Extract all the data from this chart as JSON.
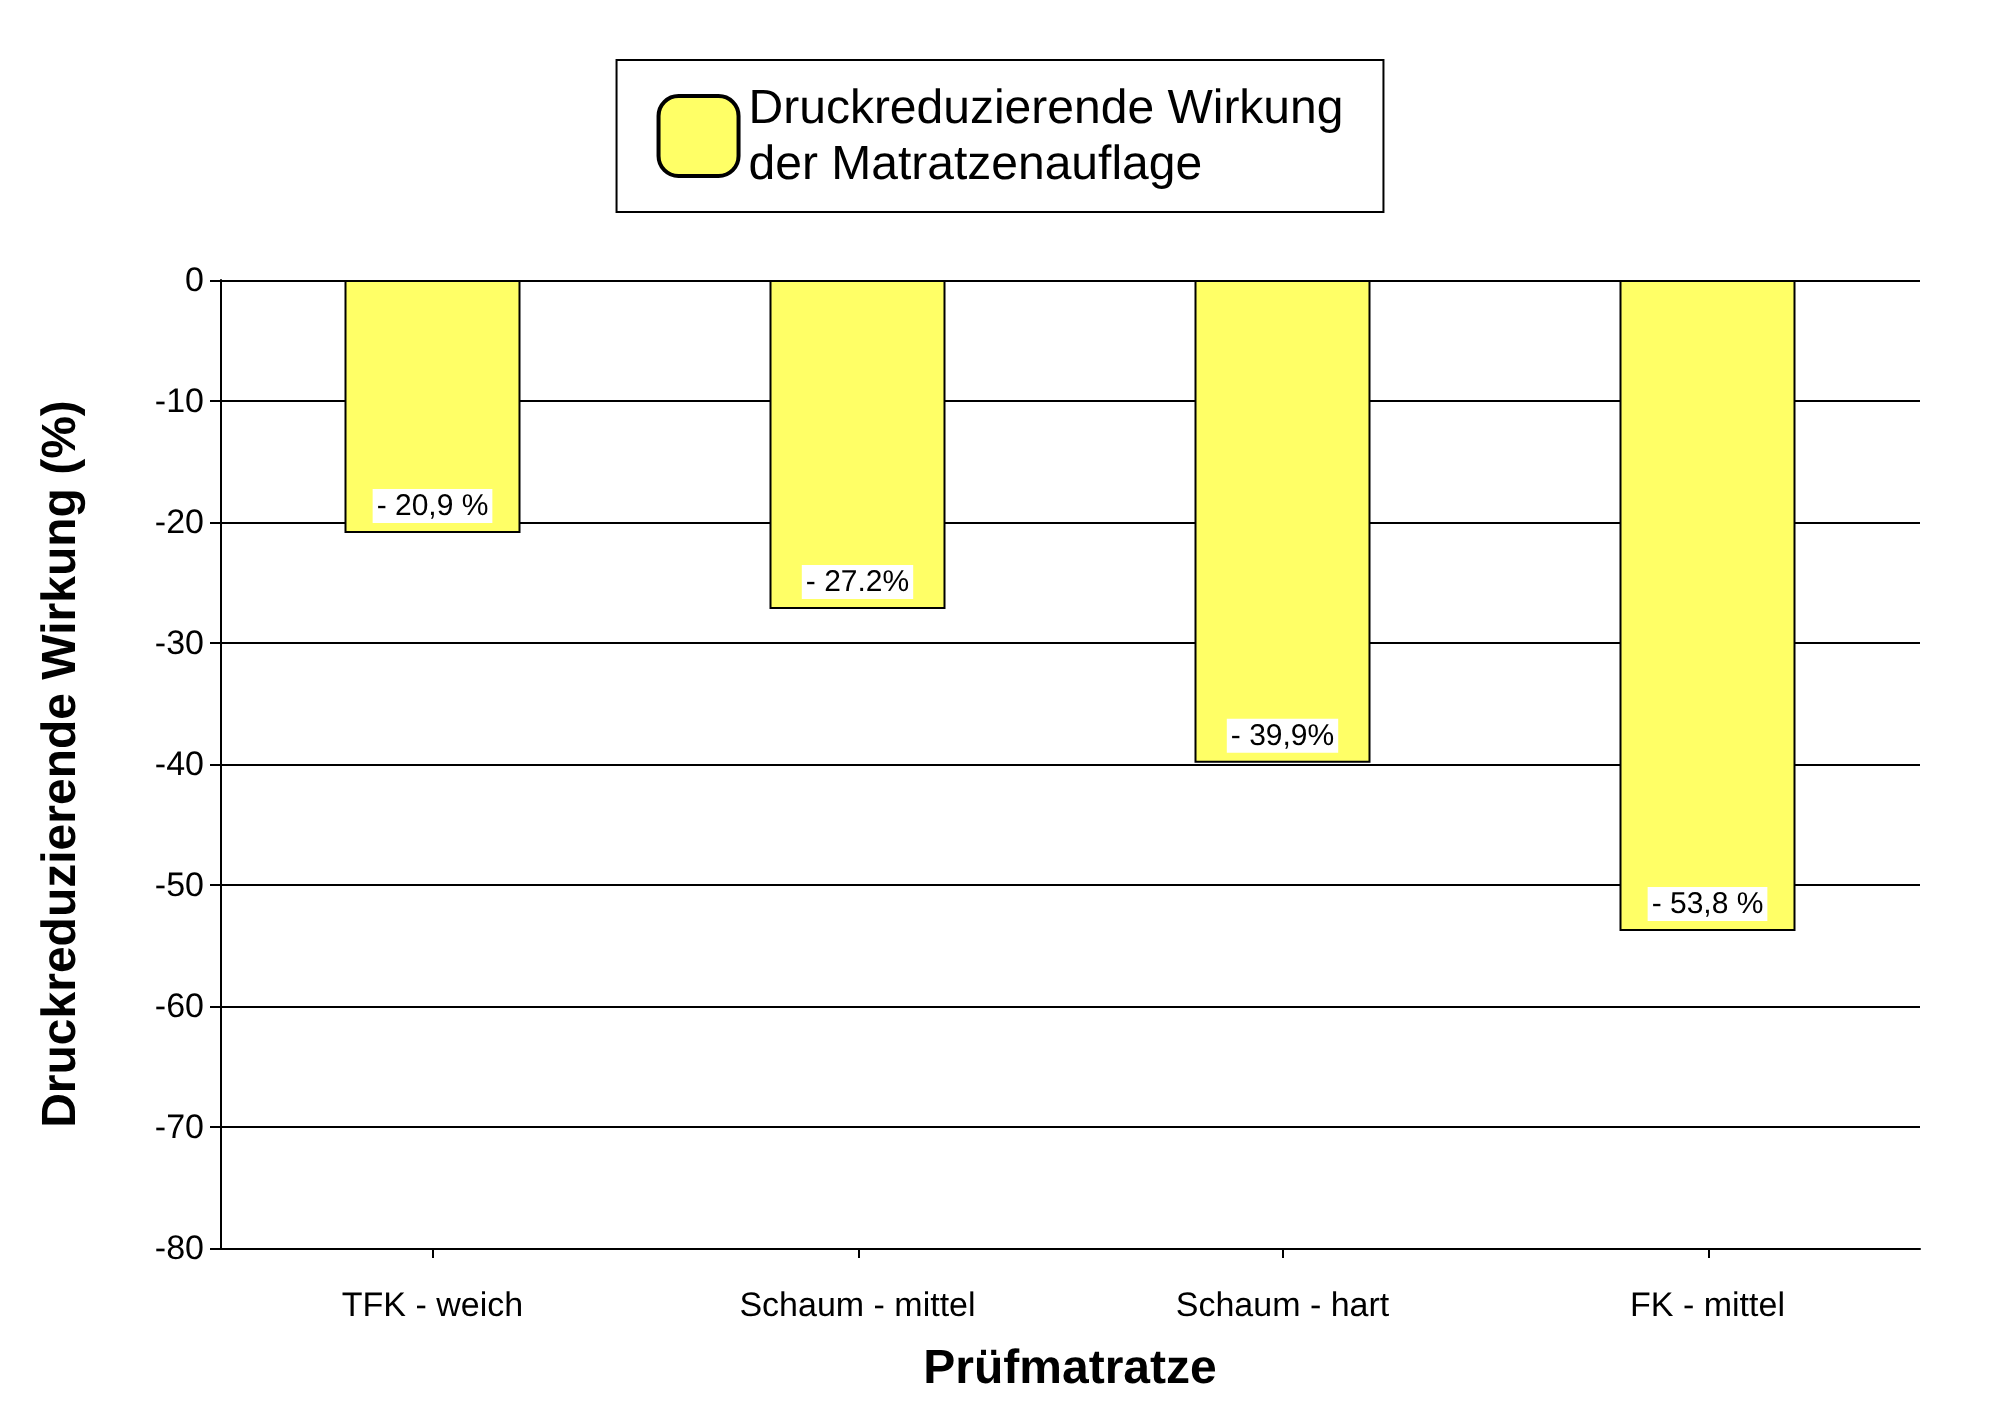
{
  "chart_data": {
    "type": "bar",
    "xlabel": "Prüfmatratze",
    "ylabel": "Druckreduzierende Wirkung (%)",
    "categories": [
      "TFK - weich",
      "Schaum - mittel",
      "Schaum - hart",
      "FK - mittel"
    ],
    "series": [
      {
        "name": "Druckreduzierende Wirkung\nder Matratzenauflage",
        "color": "#ffff66",
        "values": [
          -20.9,
          -27.2,
          -39.9,
          -53.8
        ],
        "value_labels": [
          "- 20,9 %",
          "- 27.2%",
          "- 39,9%",
          "- 53,8 %"
        ]
      }
    ],
    "ylim": [
      -80,
      0
    ],
    "yticks": [
      -80,
      -70,
      -60,
      -50,
      -40,
      -30,
      -20,
      -10,
      0
    ],
    "grid": "y",
    "legend": "top"
  }
}
